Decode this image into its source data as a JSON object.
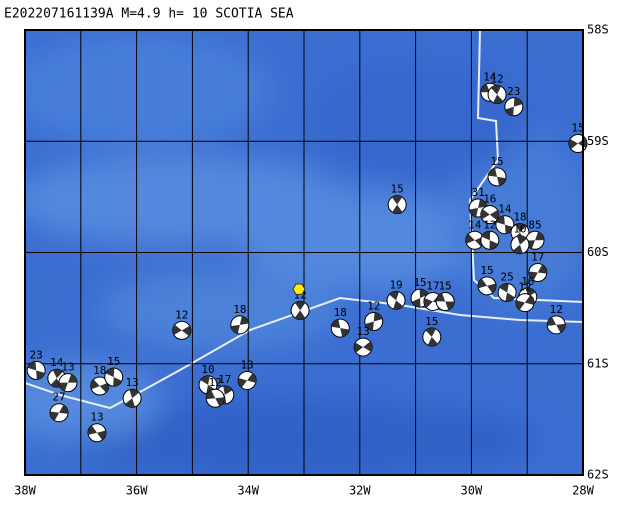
{
  "chart_data": {
    "type": "map",
    "title": "E202207161139A M=4.9 h= 10 SCOTIA SEA",
    "xlim": [
      -38,
      -28
    ],
    "ylim": [
      -62,
      -58
    ],
    "xticks": [
      {
        "value": -38,
        "label": "38W"
      },
      {
        "value": -36,
        "label": "36W"
      },
      {
        "value": -34,
        "label": "34W"
      },
      {
        "value": -32,
        "label": "32W"
      },
      {
        "value": -30,
        "label": "30W"
      },
      {
        "value": -28,
        "label": "28W"
      }
    ],
    "yticks": [
      {
        "value": -58,
        "label": "58S"
      },
      {
        "value": -59,
        "label": "59S"
      },
      {
        "value": -60,
        "label": "60S"
      },
      {
        "value": -61,
        "label": "61S"
      },
      {
        "value": -62,
        "label": "62S"
      }
    ],
    "grid": true,
    "epicenter": {
      "lon": -33.09,
      "lat": -60.33,
      "color": "#ffee00"
    },
    "events": {
      "lon": [
        -29.67,
        -29.54,
        -29.24,
        -28.09,
        -29.54,
        -31.33,
        -29.88,
        -29.67,
        -29.4,
        -29.13,
        -28.86,
        -29.94,
        -29.67,
        -29.13,
        -28.81,
        -29.72,
        -29.36,
        -28.99,
        -29.04,
        -28.48,
        -31.35,
        -30.92,
        -30.69,
        -30.47,
        -30.71,
        -31.75,
        -31.94,
        -32.35,
        -33.07,
        -34.15,
        -35.19,
        -37.8,
        -37.43,
        -37.23,
        -36.66,
        -36.41,
        -36.08,
        -37.39,
        -36.71,
        -34.72,
        -34.42,
        -34.02,
        -34.59
      ],
      "lat": [
        -58.56,
        -58.58,
        -58.69,
        -59.02,
        -59.32,
        -59.57,
        -59.6,
        -59.66,
        -59.75,
        -59.82,
        -59.89,
        -59.89,
        -59.89,
        -59.93,
        -60.18,
        -60.3,
        -60.36,
        -60.4,
        -60.45,
        -60.65,
        -60.43,
        -60.41,
        -60.44,
        -60.44,
        -60.76,
        -60.62,
        -60.85,
        -60.68,
        -60.52,
        -60.65,
        -60.7,
        -61.06,
        -61.13,
        -61.17,
        -61.2,
        -61.12,
        -61.31,
        -61.44,
        -61.62,
        -61.19,
        -61.28,
        -61.15,
        -61.31
      ],
      "depth": [
        14,
        12,
        23,
        15,
        15,
        15,
        31,
        16,
        14,
        18,
        85,
        14,
        12,
        10,
        17,
        15,
        25,
        16,
        12,
        12,
        19,
        15,
        17,
        15,
        15,
        12,
        13,
        18,
        12,
        18,
        12,
        23,
        14,
        13,
        18,
        15,
        13,
        27,
        13,
        10,
        17,
        13,
        12
      ]
    }
  }
}
